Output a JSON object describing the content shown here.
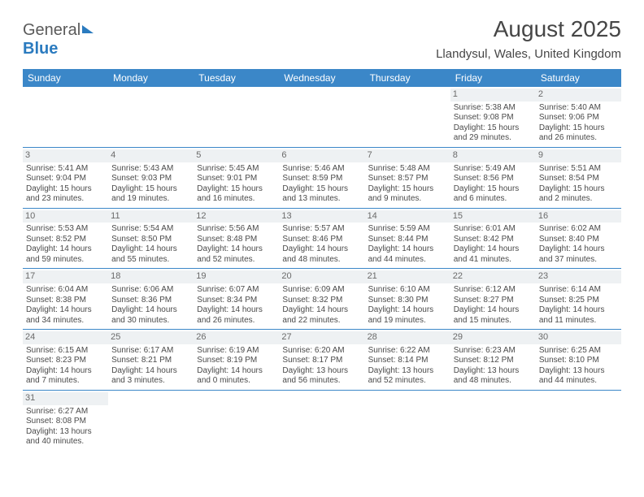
{
  "logo": {
    "general": "General",
    "blue": "Blue"
  },
  "header": {
    "title": "August 2025",
    "location": "Llandysul, Wales, United Kingdom"
  },
  "dayHeaders": [
    "Sunday",
    "Monday",
    "Tuesday",
    "Wednesday",
    "Thursday",
    "Friday",
    "Saturday"
  ],
  "colors": {
    "headerBg": "#3b87c8",
    "headerText": "#ffffff",
    "dayStripe": "#eef1f3",
    "textMain": "#4a4a4a",
    "brandBlue": "#2b7bbf",
    "rowBorder": "#3b87c8"
  },
  "weeks": [
    [
      null,
      null,
      null,
      null,
      null,
      {
        "n": "1",
        "sunrise": "Sunrise: 5:38 AM",
        "sunset": "Sunset: 9:08 PM",
        "day1": "Daylight: 15 hours",
        "day2": "and 29 minutes."
      },
      {
        "n": "2",
        "sunrise": "Sunrise: 5:40 AM",
        "sunset": "Sunset: 9:06 PM",
        "day1": "Daylight: 15 hours",
        "day2": "and 26 minutes."
      }
    ],
    [
      {
        "n": "3",
        "sunrise": "Sunrise: 5:41 AM",
        "sunset": "Sunset: 9:04 PM",
        "day1": "Daylight: 15 hours",
        "day2": "and 23 minutes."
      },
      {
        "n": "4",
        "sunrise": "Sunrise: 5:43 AM",
        "sunset": "Sunset: 9:03 PM",
        "day1": "Daylight: 15 hours",
        "day2": "and 19 minutes."
      },
      {
        "n": "5",
        "sunrise": "Sunrise: 5:45 AM",
        "sunset": "Sunset: 9:01 PM",
        "day1": "Daylight: 15 hours",
        "day2": "and 16 minutes."
      },
      {
        "n": "6",
        "sunrise": "Sunrise: 5:46 AM",
        "sunset": "Sunset: 8:59 PM",
        "day1": "Daylight: 15 hours",
        "day2": "and 13 minutes."
      },
      {
        "n": "7",
        "sunrise": "Sunrise: 5:48 AM",
        "sunset": "Sunset: 8:57 PM",
        "day1": "Daylight: 15 hours",
        "day2": "and 9 minutes."
      },
      {
        "n": "8",
        "sunrise": "Sunrise: 5:49 AM",
        "sunset": "Sunset: 8:56 PM",
        "day1": "Daylight: 15 hours",
        "day2": "and 6 minutes."
      },
      {
        "n": "9",
        "sunrise": "Sunrise: 5:51 AM",
        "sunset": "Sunset: 8:54 PM",
        "day1": "Daylight: 15 hours",
        "day2": "and 2 minutes."
      }
    ],
    [
      {
        "n": "10",
        "sunrise": "Sunrise: 5:53 AM",
        "sunset": "Sunset: 8:52 PM",
        "day1": "Daylight: 14 hours",
        "day2": "and 59 minutes."
      },
      {
        "n": "11",
        "sunrise": "Sunrise: 5:54 AM",
        "sunset": "Sunset: 8:50 PM",
        "day1": "Daylight: 14 hours",
        "day2": "and 55 minutes."
      },
      {
        "n": "12",
        "sunrise": "Sunrise: 5:56 AM",
        "sunset": "Sunset: 8:48 PM",
        "day1": "Daylight: 14 hours",
        "day2": "and 52 minutes."
      },
      {
        "n": "13",
        "sunrise": "Sunrise: 5:57 AM",
        "sunset": "Sunset: 8:46 PM",
        "day1": "Daylight: 14 hours",
        "day2": "and 48 minutes."
      },
      {
        "n": "14",
        "sunrise": "Sunrise: 5:59 AM",
        "sunset": "Sunset: 8:44 PM",
        "day1": "Daylight: 14 hours",
        "day2": "and 44 minutes."
      },
      {
        "n": "15",
        "sunrise": "Sunrise: 6:01 AM",
        "sunset": "Sunset: 8:42 PM",
        "day1": "Daylight: 14 hours",
        "day2": "and 41 minutes."
      },
      {
        "n": "16",
        "sunrise": "Sunrise: 6:02 AM",
        "sunset": "Sunset: 8:40 PM",
        "day1": "Daylight: 14 hours",
        "day2": "and 37 minutes."
      }
    ],
    [
      {
        "n": "17",
        "sunrise": "Sunrise: 6:04 AM",
        "sunset": "Sunset: 8:38 PM",
        "day1": "Daylight: 14 hours",
        "day2": "and 34 minutes."
      },
      {
        "n": "18",
        "sunrise": "Sunrise: 6:06 AM",
        "sunset": "Sunset: 8:36 PM",
        "day1": "Daylight: 14 hours",
        "day2": "and 30 minutes."
      },
      {
        "n": "19",
        "sunrise": "Sunrise: 6:07 AM",
        "sunset": "Sunset: 8:34 PM",
        "day1": "Daylight: 14 hours",
        "day2": "and 26 minutes."
      },
      {
        "n": "20",
        "sunrise": "Sunrise: 6:09 AM",
        "sunset": "Sunset: 8:32 PM",
        "day1": "Daylight: 14 hours",
        "day2": "and 22 minutes."
      },
      {
        "n": "21",
        "sunrise": "Sunrise: 6:10 AM",
        "sunset": "Sunset: 8:30 PM",
        "day1": "Daylight: 14 hours",
        "day2": "and 19 minutes."
      },
      {
        "n": "22",
        "sunrise": "Sunrise: 6:12 AM",
        "sunset": "Sunset: 8:27 PM",
        "day1": "Daylight: 14 hours",
        "day2": "and 15 minutes."
      },
      {
        "n": "23",
        "sunrise": "Sunrise: 6:14 AM",
        "sunset": "Sunset: 8:25 PM",
        "day1": "Daylight: 14 hours",
        "day2": "and 11 minutes."
      }
    ],
    [
      {
        "n": "24",
        "sunrise": "Sunrise: 6:15 AM",
        "sunset": "Sunset: 8:23 PM",
        "day1": "Daylight: 14 hours",
        "day2": "and 7 minutes."
      },
      {
        "n": "25",
        "sunrise": "Sunrise: 6:17 AM",
        "sunset": "Sunset: 8:21 PM",
        "day1": "Daylight: 14 hours",
        "day2": "and 3 minutes."
      },
      {
        "n": "26",
        "sunrise": "Sunrise: 6:19 AM",
        "sunset": "Sunset: 8:19 PM",
        "day1": "Daylight: 14 hours",
        "day2": "and 0 minutes."
      },
      {
        "n": "27",
        "sunrise": "Sunrise: 6:20 AM",
        "sunset": "Sunset: 8:17 PM",
        "day1": "Daylight: 13 hours",
        "day2": "and 56 minutes."
      },
      {
        "n": "28",
        "sunrise": "Sunrise: 6:22 AM",
        "sunset": "Sunset: 8:14 PM",
        "day1": "Daylight: 13 hours",
        "day2": "and 52 minutes."
      },
      {
        "n": "29",
        "sunrise": "Sunrise: 6:23 AM",
        "sunset": "Sunset: 8:12 PM",
        "day1": "Daylight: 13 hours",
        "day2": "and 48 minutes."
      },
      {
        "n": "30",
        "sunrise": "Sunrise: 6:25 AM",
        "sunset": "Sunset: 8:10 PM",
        "day1": "Daylight: 13 hours",
        "day2": "and 44 minutes."
      }
    ],
    [
      {
        "n": "31",
        "sunrise": "Sunrise: 6:27 AM",
        "sunset": "Sunset: 8:08 PM",
        "day1": "Daylight: 13 hours",
        "day2": "and 40 minutes."
      },
      null,
      null,
      null,
      null,
      null,
      null
    ]
  ]
}
